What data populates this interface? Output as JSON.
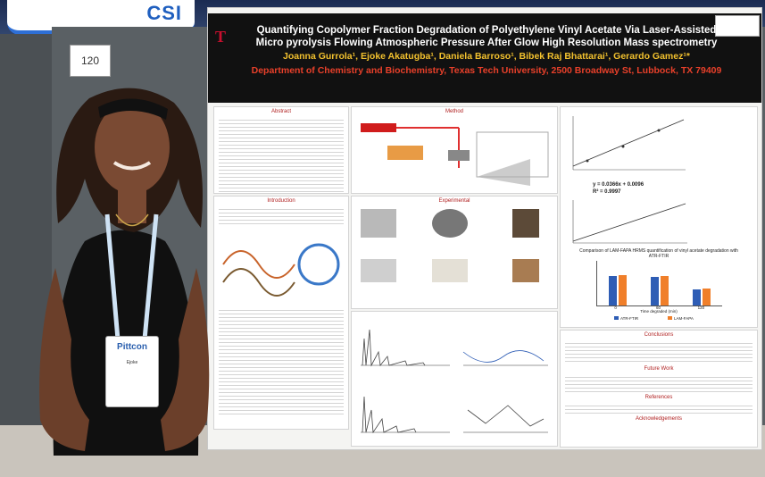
{
  "banner": {
    "text": "CSI"
  },
  "board_number": "120",
  "poster": {
    "title_line1": "Quantifying Copolymer Fraction Degradation of Polyethylene Vinyl Acetate Via Laser-Assisted",
    "title_line2": "Micro pyrolysis Flowing Atmospheric Pressure After Glow High Resolution Mass spectrometry",
    "authors": "Joanna Gurrola¹, Ejoke Akatugba¹, Daniela Barroso¹, Bibek Raj Bhattarai¹, Gerardo Gamez¹*",
    "department": "Department of Chemistry and Biochemistry, Texas Tech University, 2500 Broadway St, Lubbock, TX 79409",
    "sections": {
      "abstract": "Abstract",
      "method": "Method",
      "introduction": "Introduction",
      "experimental": "Experimental",
      "conclusions": "Conclusions",
      "future_work": "Future Work",
      "references": "References",
      "acknowledgements": "Acknowledgements"
    },
    "va_fit": {
      "equation": "y = 0.0366x + 0.0096",
      "r2": "R² = 0.9997"
    },
    "comparison_title": "Comparison of LAM-FAPA HRMS quantification of vinyl acetate degradation with ATR-FTIR",
    "chart_data": {
      "type": "bar",
      "categories": [
        "0",
        "60",
        "120"
      ],
      "series": [
        {
          "name": "ATR-FTIR",
          "values": [
            0.33,
            0.32,
            0.18
          ]
        },
        {
          "name": "LAM-FAPA",
          "values": [
            0.34,
            0.33,
            0.19
          ]
        }
      ],
      "xlabel": "Time degraded (min)",
      "ylim": [
        0,
        0.5
      ]
    }
  },
  "badge": {
    "brand": "Pittcon",
    "name": "Ejoke"
  },
  "colors": {
    "header": "#111111",
    "title": "#ffffff",
    "authors": "#f2c12e",
    "department": "#e8402a",
    "series_blue": "#2e5db5",
    "series_orange": "#f07f2a"
  }
}
